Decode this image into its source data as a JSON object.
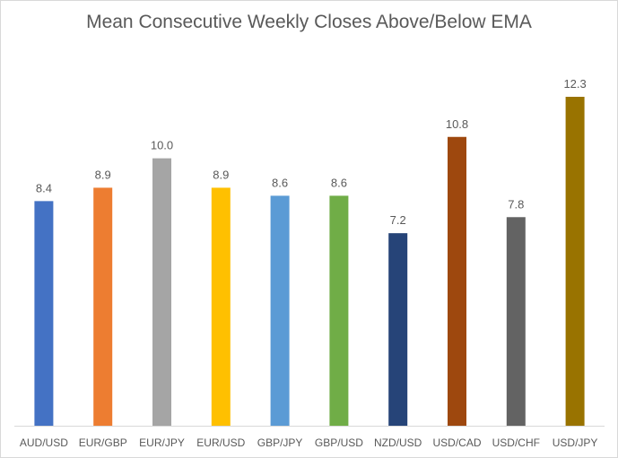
{
  "chart_data": {
    "type": "bar",
    "title": "Mean Consecutive Weekly Closes Above/Below EMA",
    "xlabel": "",
    "ylabel": "",
    "ylim": [
      0,
      12.3
    ],
    "grid": false,
    "legend": "none",
    "categories": [
      "AUD/USD",
      "EUR/GBP",
      "EUR/JPY",
      "EUR/USD",
      "GBP/JPY",
      "GBP/USD",
      "NZD/USD",
      "USD/CAD",
      "USD/CHF",
      "USD/JPY"
    ],
    "values": [
      8.4,
      8.9,
      10.0,
      8.9,
      8.6,
      8.6,
      7.2,
      10.8,
      7.8,
      12.3
    ],
    "value_labels": [
      "8.4",
      "8.9",
      "10.0",
      "8.9",
      "8.6",
      "8.6",
      "7.2",
      "10.8",
      "7.8",
      "12.3"
    ],
    "colors": [
      "#4472c4",
      "#ed7d31",
      "#a5a5a5",
      "#ffc000",
      "#5b9bd5",
      "#70ad47",
      "#264478",
      "#9e480e",
      "#636363",
      "#997300"
    ]
  }
}
